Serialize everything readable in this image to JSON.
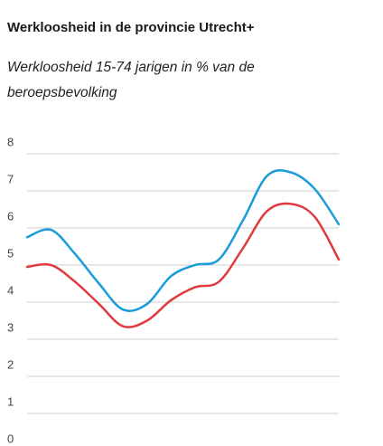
{
  "chart_data": {
    "type": "line",
    "title": "Werkloosheid in de provincie Utrecht+",
    "subtitle": "Werkloosheid 15-74 jarigen in % van de beroepsbevolking",
    "categories": [
      null,
      null,
      null,
      null,
      null,
      null,
      null,
      null,
      null,
      null,
      null,
      null,
      null,
      null
    ],
    "series": [
      {
        "color": "#1a9cd8",
        "values": [
          5.75,
          5.95,
          5.3,
          4.5,
          3.8,
          3.95,
          4.7,
          5.0,
          5.15,
          6.2,
          7.4,
          7.5,
          7.05,
          6.1
        ]
      },
      {
        "color": "#e03a3e",
        "values": [
          4.95,
          5.0,
          4.55,
          3.95,
          3.35,
          3.5,
          4.05,
          4.4,
          4.55,
          5.45,
          6.45,
          6.65,
          6.3,
          5.15
        ]
      }
    ],
    "ylim": [
      0,
      8
    ],
    "yticks": [
      0,
      1,
      2,
      3,
      4,
      5,
      6,
      7,
      8
    ],
    "grid": true
  }
}
